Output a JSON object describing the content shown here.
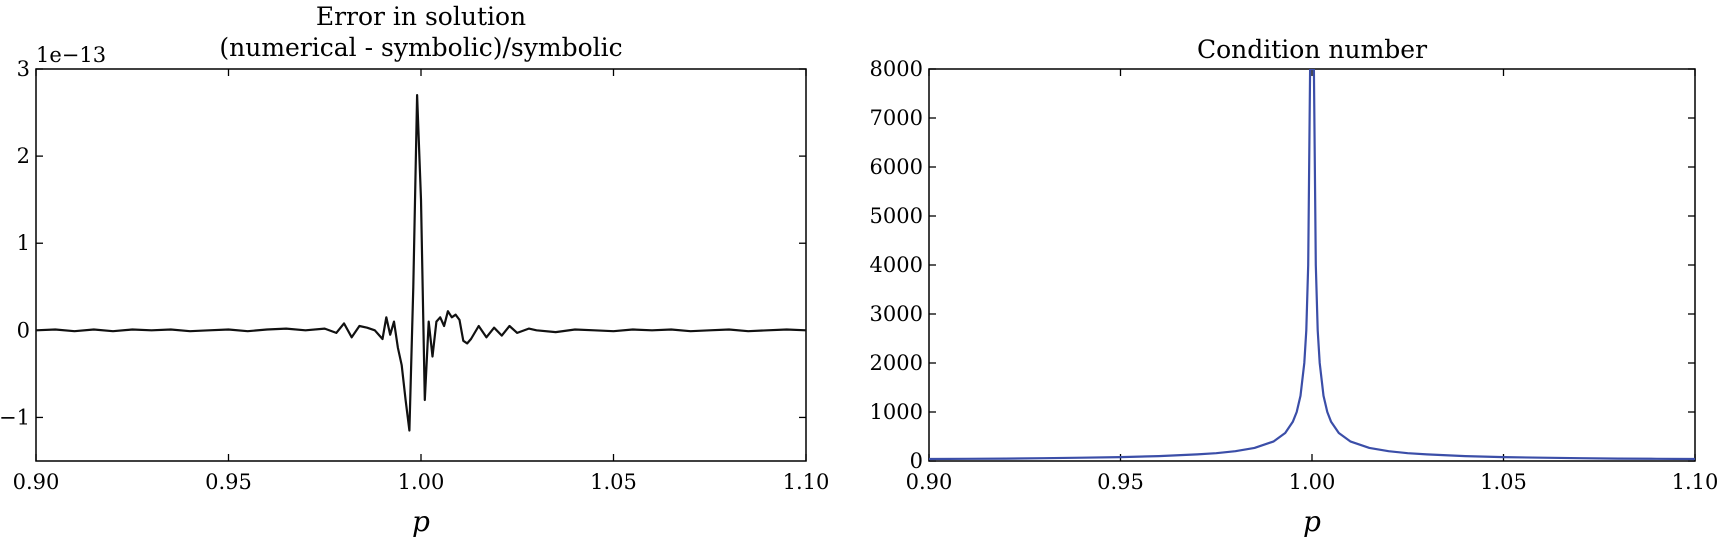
{
  "chart_data": [
    {
      "type": "line",
      "title": "Error in solution",
      "subtitle": "(numerical - symbolic)/symbolic",
      "xlabel": "p",
      "ylabel": "",
      "xlim": [
        0.9,
        1.1
      ],
      "ylim": [
        -1.5,
        3.0
      ],
      "y_multiplier": "1e−13",
      "xticks": [
        0.9,
        0.95,
        1.0,
        1.05,
        1.1
      ],
      "xtick_labels": [
        "0.90",
        "0.95",
        "1.00",
        "1.05",
        "1.10"
      ],
      "yticks": [
        -1,
        0,
        1,
        2,
        3
      ],
      "ytick_labels": [
        "−1",
        "0",
        "1",
        "2",
        "3"
      ],
      "grid": false,
      "color": "#111111",
      "series": [
        {
          "x": [
            0.9,
            0.905,
            0.91,
            0.915,
            0.92,
            0.925,
            0.93,
            0.935,
            0.94,
            0.945,
            0.95,
            0.955,
            0.96,
            0.965,
            0.97,
            0.975,
            0.978,
            0.98,
            0.982,
            0.984,
            0.986,
            0.988,
            0.99,
            0.991,
            0.992,
            0.993,
            0.994,
            0.995,
            0.996,
            0.997,
            0.998,
            0.999,
            1.0,
            1.001,
            1.002,
            1.003,
            1.004,
            1.005,
            1.006,
            1.007,
            1.008,
            1.009,
            1.01,
            1.011,
            1.012,
            1.013,
            1.015,
            1.017,
            1.019,
            1.021,
            1.023,
            1.025,
            1.028,
            1.03,
            1.035,
            1.04,
            1.045,
            1.05,
            1.055,
            1.06,
            1.065,
            1.07,
            1.075,
            1.08,
            1.085,
            1.09,
            1.095,
            1.1
          ],
          "values": [
            0.0,
            0.01,
            -0.01,
            0.01,
            -0.01,
            0.01,
            0.0,
            0.01,
            -0.01,
            0.0,
            0.01,
            -0.01,
            0.01,
            0.02,
            0.0,
            0.02,
            -0.03,
            0.08,
            -0.08,
            0.05,
            0.03,
            0.0,
            -0.1,
            0.15,
            -0.05,
            0.1,
            -0.2,
            -0.4,
            -0.8,
            -1.15,
            0.5,
            2.7,
            1.5,
            -0.8,
            0.1,
            -0.3,
            0.1,
            0.15,
            0.05,
            0.22,
            0.15,
            0.18,
            0.12,
            -0.12,
            -0.15,
            -0.1,
            0.05,
            -0.08,
            0.03,
            -0.06,
            0.05,
            -0.03,
            0.02,
            0.0,
            -0.02,
            0.01,
            0.0,
            -0.01,
            0.01,
            0.0,
            0.01,
            -0.01,
            0.0,
            0.01,
            -0.01,
            0.0,
            0.01,
            0.0
          ]
        }
      ]
    },
    {
      "type": "line",
      "title": "Condition number",
      "xlabel": "p",
      "ylabel": "",
      "xlim": [
        0.9,
        1.1
      ],
      "ylim": [
        0,
        8000
      ],
      "xticks": [
        0.9,
        0.95,
        1.0,
        1.05,
        1.1
      ],
      "xtick_labels": [
        "0.90",
        "0.95",
        "1.00",
        "1.05",
        "1.10"
      ],
      "yticks": [
        0,
        1000,
        2000,
        3000,
        4000,
        5000,
        6000,
        7000,
        8000
      ],
      "ytick_labels": [
        "0",
        "1000",
        "2000",
        "3000",
        "4000",
        "5000",
        "6000",
        "7000",
        "8000"
      ],
      "grid": false,
      "color": "#3b4ea8",
      "series": [
        {
          "x": [
            0.9,
            0.91,
            0.92,
            0.93,
            0.94,
            0.95,
            0.96,
            0.97,
            0.975,
            0.98,
            0.985,
            0.99,
            0.993,
            0.995,
            0.996,
            0.997,
            0.998,
            0.9985,
            0.999,
            0.9995,
            0.9998,
            1.0,
            1.0002,
            1.0005,
            1.001,
            1.0015,
            1.002,
            1.003,
            1.004,
            1.005,
            1.007,
            1.01,
            1.015,
            1.02,
            1.025,
            1.03,
            1.04,
            1.05,
            1.06,
            1.07,
            1.08,
            1.09,
            1.1
          ],
          "values": [
            40,
            44,
            50,
            57,
            67,
            80,
            100,
            134,
            160,
            200,
            267,
            400,
            571,
            800,
            1000,
            1333,
            2000,
            2667,
            4000,
            8000,
            8000,
            8000,
            8000,
            8000,
            4000,
            2667,
            2000,
            1333,
            1000,
            800,
            571,
            400,
            267,
            200,
            160,
            134,
            100,
            80,
            67,
            57,
            50,
            44,
            40
          ]
        }
      ]
    }
  ]
}
